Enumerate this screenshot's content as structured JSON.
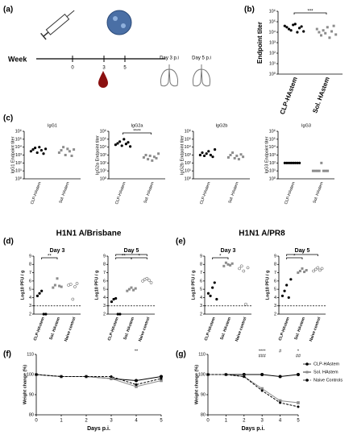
{
  "panel_labels": [
    "(a)",
    "(b)",
    "(c)",
    "(d)",
    "(e)",
    "(f)",
    "(g)"
  ],
  "group_titles": [
    "H1N1 A/Brisbane",
    "H1N1 A/PR8"
  ],
  "timeline": {
    "week_label": "Week",
    "ticks": [
      0,
      3,
      5
    ],
    "days": [
      "Day 3 p.i",
      "Day 5 p.i"
    ]
  },
  "chart_data": [
    {
      "type": "dot",
      "ylabel": "Endpoint titer",
      "log": true,
      "categories": [
        "CLP-HAstem",
        "Sol. HAstem"
      ],
      "colors": [
        "#000000",
        "#8c8c8c"
      ],
      "values": [
        [
          40000,
          30000,
          20000,
          15000,
          50000,
          60000,
          10000,
          25000,
          35000,
          12000
        ],
        [
          20000,
          10000,
          5000,
          15000,
          8000,
          30000,
          3000,
          12000,
          40000,
          6000
        ]
      ],
      "ylim": [
        1,
        1000000
      ],
      "yticks": [
        {
          "value": 1,
          "label": "10⁰"
        },
        {
          "value": 10,
          "label": "10¹"
        },
        {
          "value": 100,
          "label": "10²"
        },
        {
          "value": 1000,
          "label": "10³"
        },
        {
          "value": 10000,
          "label": "10⁴"
        },
        {
          "value": 100000,
          "label": "10⁵"
        },
        {
          "value": 1000000,
          "label": "10⁶"
        }
      ],
      "annotations": [
        "***"
      ]
    },
    {
      "type": "dot",
      "title": "IgG1",
      "ylabel": "IgG1 Endpoint titer",
      "log": true,
      "categories": [
        "CLP-HAstem",
        "Sol. HAstem"
      ],
      "colors": [
        "#000000",
        "#8c8c8c"
      ],
      "values": [
        [
          3000,
          5000,
          8000,
          2000,
          10000,
          4000,
          1500,
          6000
        ],
        [
          2000,
          4000,
          10000,
          1000,
          6000,
          3000,
          800,
          5000
        ]
      ],
      "ylim": [
        1,
        1000000
      ],
      "yticks": [
        {
          "value": 1,
          "label": "10⁰"
        },
        {
          "value": 10,
          "label": "10¹"
        },
        {
          "value": 100,
          "label": "10²"
        },
        {
          "value": 1000,
          "label": "10³"
        },
        {
          "value": 10000,
          "label": "10⁴"
        },
        {
          "value": 100000,
          "label": "10⁵"
        },
        {
          "value": 1000000,
          "label": "10⁶"
        }
      ],
      "annotations": []
    },
    {
      "type": "dot",
      "title": "IgG2a",
      "ylabel": "IgG2a Endpoint titer",
      "log": true,
      "categories": [
        "CLP-HAstem",
        "Sol. HAstem"
      ],
      "colors": [
        "#000000",
        "#8c8c8c"
      ],
      "values": [
        [
          20000,
          30000,
          50000,
          15000,
          100000,
          25000,
          40000,
          12000
        ],
        [
          500,
          1000,
          300,
          800,
          200,
          600,
          400,
          1500
        ]
      ],
      "ylim": [
        1,
        1000000
      ],
      "yticks": [
        {
          "value": 1,
          "label": "10⁰"
        },
        {
          "value": 10,
          "label": "10¹"
        },
        {
          "value": 100,
          "label": "10²"
        },
        {
          "value": 1000,
          "label": "10³"
        },
        {
          "value": 10000,
          "label": "10⁴"
        },
        {
          "value": 100000,
          "label": "10⁵"
        },
        {
          "value": 1000000,
          "label": "10⁶"
        }
      ],
      "annotations": [
        "****"
      ]
    },
    {
      "type": "dot",
      "title": "IgG2b",
      "ylabel": "IgG2b Endpoint titer",
      "log": true,
      "categories": [
        "CLP-HAstem",
        "Sol. HAstem"
      ],
      "colors": [
        "#000000",
        "#8c8c8c"
      ],
      "values": [
        [
          1000,
          2000,
          800,
          1500,
          3000,
          1000,
          600,
          5000
        ],
        [
          500,
          1000,
          2000,
          400,
          800,
          300,
          1200,
          600
        ]
      ],
      "ylim": [
        1,
        1000000
      ],
      "yticks": [
        {
          "value": 1,
          "label": "10⁰"
        },
        {
          "value": 10,
          "label": "10¹"
        },
        {
          "value": 100,
          "label": "10²"
        },
        {
          "value": 1000,
          "label": "10³"
        },
        {
          "value": 10000,
          "label": "10⁴"
        },
        {
          "value": 100000,
          "label": "10⁵"
        },
        {
          "value": 1000000,
          "label": "10⁶"
        }
      ],
      "annotations": []
    },
    {
      "type": "dot",
      "title": "IgG3",
      "ylabel": "IgG3 Endpoint titer",
      "log": true,
      "categories": [
        "CLP-HAstem",
        "Sol. HAstem"
      ],
      "colors": [
        "#000000",
        "#8c8c8c"
      ],
      "values": [
        [
          100,
          100,
          100,
          100,
          100,
          100,
          100,
          100
        ],
        [
          10,
          10,
          10,
          10,
          100,
          10,
          10,
          10
        ]
      ],
      "ylim": [
        1,
        1000000
      ],
      "yticks": [
        {
          "value": 1,
          "label": "10⁰"
        },
        {
          "value": 10,
          "label": "10¹"
        },
        {
          "value": 100,
          "label": "10²"
        },
        {
          "value": 1000,
          "label": "10³"
        },
        {
          "value": 10000,
          "label": "10⁴"
        },
        {
          "value": 100000,
          "label": "10⁵"
        },
        {
          "value": 1000000,
          "label": "10⁶"
        }
      ],
      "annotations": []
    },
    {
      "type": "dot",
      "title": "Day 3",
      "ylabel": "Log10 PFU / g",
      "categories": [
        "CLP-HAstem",
        "Sol. HAstem",
        "Naive control"
      ],
      "colors": [
        "#000000",
        "#8c8c8c",
        "#ffffff"
      ],
      "values": [
        [
          4.2,
          4.5,
          4.8,
          2,
          2
        ],
        [
          5.2,
          5.5,
          6.3,
          5.4,
          5.3
        ],
        [
          5.5,
          5.6,
          3.8,
          5.3,
          5.7
        ]
      ],
      "threshold": 3,
      "ylim": [
        2,
        9
      ],
      "yticks": [
        2,
        3,
        4,
        5,
        6,
        7,
        8,
        9
      ],
      "annotations": [
        "**"
      ]
    },
    {
      "type": "dot",
      "title": "Day 5",
      "ylabel": "Log10 PFU / g",
      "categories": [
        "CLP-HAstem",
        "Sol. HAstem",
        "Naive control"
      ],
      "colors": [
        "#000000",
        "#8c8c8c",
        "#ffffff"
      ],
      "values": [
        [
          3.5,
          3.8,
          3.9,
          2,
          2
        ],
        [
          4.8,
          5,
          5.2,
          4.9,
          5.1
        ],
        [
          6,
          6.2,
          6.3,
          6.1,
          5.8
        ]
      ],
      "threshold": 3,
      "ylim": [
        2,
        9
      ],
      "yticks": [
        2,
        3,
        4,
        5,
        6,
        7,
        8,
        9
      ],
      "annotations": [
        "**",
        "*",
        "**"
      ]
    },
    {
      "type": "dot",
      "title": "Day 3",
      "ylabel": "Log10 PFU / g",
      "categories": [
        "CLP-HAstem",
        "Sol. HAstem",
        "Naive control"
      ],
      "colors": [
        "#000000",
        "#8c8c8c",
        "#ffffff"
      ],
      "values": [
        [
          4.5,
          4.2,
          5.2,
          5.8,
          3.8
        ],
        [
          7.8,
          8.2,
          8,
          7.9,
          8.1
        ],
        [
          7.5,
          7.8,
          7.2,
          3.2,
          7.6
        ]
      ],
      "threshold": 3,
      "ylim": [
        2,
        9
      ],
      "yticks": [
        2,
        3,
        4,
        5,
        6,
        7,
        8,
        9
      ],
      "annotations": [
        "*"
      ]
    },
    {
      "type": "dot",
      "title": "Day 5",
      "ylabel": "Log10 PFU / g",
      "categories": [
        "CLP-HAstem",
        "Sol. HAstem",
        "Naive control"
      ],
      "colors": [
        "#000000",
        "#8c8c8c",
        "#ffffff"
      ],
      "values": [
        [
          4.2,
          4.8,
          5.5,
          4,
          6.2
        ],
        [
          7,
          7.2,
          7.5,
          7.1,
          7.3
        ],
        [
          7.2,
          7.4,
          7.6,
          7.3,
          7.5
        ]
      ],
      "threshold": 3,
      "ylim": [
        2,
        9
      ],
      "yticks": [
        2,
        3,
        4,
        5,
        6,
        7,
        8,
        9
      ],
      "annotations": [
        "*",
        "**"
      ]
    },
    {
      "type": "line",
      "xlabel": "Days p.i.",
      "ylabel": "Weight change (%)",
      "x": [
        0,
        1,
        2,
        3,
        4,
        5
      ],
      "series": [
        {
          "name": "CLP-HAstem",
          "color": "#000000",
          "values": [
            100,
            99,
            99,
            98,
            97,
            99
          ]
        },
        {
          "name": "Sol. HAstem",
          "color": "#8c8c8c",
          "values": [
            100,
            99,
            99,
            98,
            94,
            97
          ]
        },
        {
          "name": "Naive Controls",
          "color": "#000000",
          "dash": true,
          "values": [
            100,
            99,
            99,
            99,
            95,
            98
          ]
        }
      ],
      "xlim": [
        0,
        5
      ],
      "xticks": [
        0,
        1,
        2,
        3,
        4,
        5
      ],
      "ylim": [
        80,
        110
      ],
      "yticks": [
        80,
        90,
        100,
        110
      ],
      "annotations": [
        {
          "text": "**",
          "x": 4
        }
      ]
    },
    {
      "type": "line",
      "xlabel": "Days p.i.",
      "ylabel": "Weight change (%)",
      "x": [
        0,
        1,
        2,
        3,
        4,
        5
      ],
      "legend": "right",
      "series": [
        {
          "name": "CLP-HAstem",
          "color": "#000000",
          "values": [
            100,
            100,
            100,
            100,
            99,
            100
          ]
        },
        {
          "name": "Sol. HAstem",
          "color": "#8c8c8c",
          "values": [
            100,
            100,
            99,
            93,
            87,
            86
          ]
        },
        {
          "name": "Naive Controls",
          "color": "#000000",
          "dash": true,
          "values": [
            100,
            100,
            99,
            92,
            86,
            84
          ]
        }
      ],
      "xlim": [
        0,
        5
      ],
      "xticks": [
        0,
        1,
        2,
        3,
        4,
        5
      ],
      "ylim": [
        80,
        110
      ],
      "yticks": [
        80,
        90,
        100,
        110
      ],
      "annotations": [
        {
          "text": "****",
          "x": 3
        },
        {
          "text": "###",
          "x": 3
        },
        {
          "text": "#",
          "x": 4
        },
        {
          "text": "*",
          "x": 5
        },
        {
          "text": "##",
          "x": 5
        }
      ]
    }
  ]
}
